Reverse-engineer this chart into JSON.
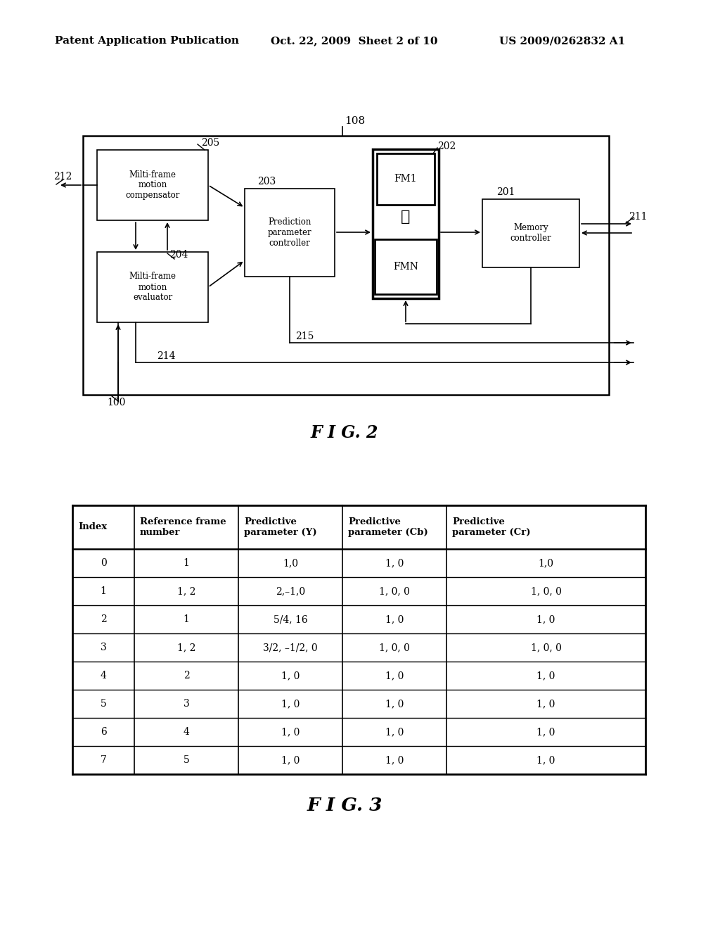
{
  "bg_color": "#ffffff",
  "header_left": "Patent Application Publication",
  "header_mid": "Oct. 22, 2009  Sheet 2 of 10",
  "header_right": "US 2009/0262832 A1",
  "fig2_label": "F I G. 2",
  "fig3_label": "F I G. 3",
  "table_headers": [
    "Index",
    "Reference frame\nnumber",
    "Predictive\nparameter (Y)",
    "Predictive\nparameter (Cb)",
    "Predictive\nparameter (Cr)"
  ],
  "table_rows": [
    [
      "0",
      "1",
      "1,0",
      "1, 0",
      "1,0"
    ],
    [
      "1",
      "1, 2",
      "2,–1,0",
      "1, 0, 0",
      "1, 0, 0"
    ],
    [
      "2",
      "1",
      "5/4, 16",
      "1, 0",
      "1, 0"
    ],
    [
      "3",
      "1, 2",
      "3/2, –1/2, 0",
      "1, 0, 0",
      "1, 0, 0"
    ],
    [
      "4",
      "2",
      "1, 0",
      "1, 0",
      "1, 0"
    ],
    [
      "5",
      "3",
      "1, 0",
      "1, 0",
      "1, 0"
    ],
    [
      "6",
      "4",
      "1, 0",
      "1, 0",
      "1, 0"
    ],
    [
      "7",
      "5",
      "1, 0",
      "1, 0",
      "1, 0"
    ]
  ]
}
